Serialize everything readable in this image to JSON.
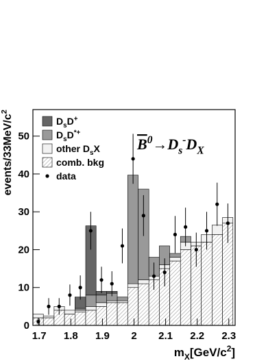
{
  "chart_data": {
    "type": "stacked_histogram",
    "title": [
      [
        "B",
        "over"
      ],
      [
        "0",
        "sup"
      ],
      [
        "→D",
        ""
      ],
      [
        "s",
        "sub"
      ],
      [
        "-",
        "sup"
      ],
      [
        "D",
        ""
      ],
      [
        "X",
        "sub"
      ]
    ],
    "x_label": [
      [
        "m",
        ""
      ],
      [
        "X",
        "sub"
      ],
      [
        "[GeV/c",
        ""
      ],
      [
        "2",
        "sup"
      ],
      [
        "]",
        ""
      ]
    ],
    "y_label": [
      [
        "events/33MeV/c",
        ""
      ],
      [
        "2",
        "sup"
      ]
    ],
    "bins": [
      1.68,
      1.713,
      1.747,
      1.78,
      1.813,
      1.847,
      1.88,
      1.913,
      1.947,
      1.98,
      2.013,
      2.047,
      2.08,
      2.113,
      2.147,
      2.18,
      2.213,
      2.247,
      2.28,
      2.313
    ],
    "series": [
      {
        "name": [
          [
            "comb. bkg",
            ""
          ]
        ],
        "color": "hatch",
        "values": [
          2,
          2,
          4,
          3,
          3.5,
          4,
          5,
          6,
          6,
          10,
          11,
          12,
          15,
          17,
          20,
          21,
          22,
          24,
          27
        ]
      },
      {
        "name": [
          [
            "other D",
            ""
          ],
          [
            "s",
            "sub"
          ],
          [
            "X",
            ""
          ]
        ],
        "color": "#f2f2f2",
        "values": [
          1,
          0.5,
          1,
          1,
          0.5,
          1,
          1,
          0.5,
          0.5,
          1,
          1,
          1,
          1,
          1,
          2,
          1,
          2,
          2.5,
          1.5
        ]
      },
      {
        "name": [
          [
            "D",
            ""
          ],
          [
            "s",
            "sub"
          ],
          [
            "D",
            ""
          ],
          [
            "*+",
            "sup"
          ]
        ],
        "color": "#999999",
        "values": [
          0,
          0,
          0,
          0,
          0.5,
          3,
          2,
          2,
          1,
          28.7,
          24,
          5,
          5,
          1,
          1.5,
          0,
          0,
          0,
          0
        ]
      },
      {
        "name": [
          [
            "D",
            ""
          ],
          [
            "s",
            "sub"
          ],
          [
            "D",
            ""
          ],
          [
            "+",
            "sup"
          ]
        ],
        "color": "#666666",
        "values": [
          0,
          0,
          0,
          0,
          3,
          18.3,
          1,
          0.5,
          0,
          0,
          0,
          0,
          0,
          0,
          0,
          0,
          0,
          0,
          0
        ]
      }
    ],
    "data": {
      "name": [
        [
          "data",
          ""
        ]
      ],
      "color": "#000000",
      "x": [
        1.697,
        1.73,
        1.763,
        1.797,
        1.83,
        1.863,
        1.897,
        1.93,
        1.963,
        1.997,
        2.03,
        2.063,
        2.097,
        2.13,
        2.163,
        2.197,
        2.23,
        2.263,
        2.297
      ],
      "values": [
        1,
        5,
        5,
        8,
        10,
        25,
        12,
        11,
        21,
        44,
        29,
        13,
        14,
        24,
        26,
        20,
        25,
        32,
        27
      ],
      "errors": [
        1,
        2.2,
        2.2,
        2.8,
        3.2,
        5,
        3.5,
        3.3,
        4.6,
        6.6,
        5.4,
        3.6,
        3.7,
        4.9,
        5.1,
        4.5,
        5,
        5.7,
        5.2
      ]
    },
    "xlim": [
      1.68,
      2.32
    ],
    "ylim": [
      0,
      57
    ],
    "xticks": [
      1.7,
      1.8,
      1.9,
      2,
      2.1,
      2.2,
      2.3
    ],
    "yticks": [
      0,
      10,
      20,
      30,
      40,
      50
    ]
  }
}
